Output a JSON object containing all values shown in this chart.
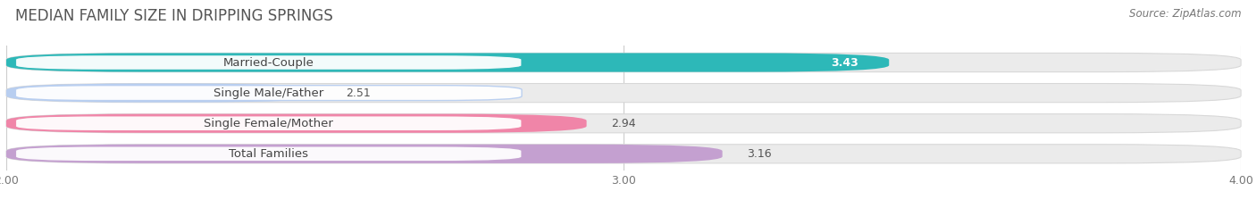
{
  "title": "MEDIAN FAMILY SIZE IN DRIPPING SPRINGS",
  "source": "Source: ZipAtlas.com",
  "categories": [
    "Married-Couple",
    "Single Male/Father",
    "Single Female/Mother",
    "Total Families"
  ],
  "values": [
    3.43,
    2.51,
    2.94,
    3.16
  ],
  "bar_colors": [
    "#2db8b8",
    "#b8cef0",
    "#f085a8",
    "#c4a0d0"
  ],
  "label_bg_colors": [
    "#e8f8f8",
    "#eaf0fc",
    "#fce8f0",
    "#f0e8f8"
  ],
  "label_border_colors": [
    "#2db8b8",
    "#b8cef0",
    "#f085a8",
    "#c4a0d0"
  ],
  "value_colors": [
    "#ffffff",
    "#555555",
    "#555555",
    "#555555"
  ],
  "xlim_min": 2.0,
  "xlim_max": 4.0,
  "xticks": [
    2.0,
    3.0,
    4.0
  ],
  "xtick_labels": [
    "2.00",
    "3.00",
    "4.00"
  ],
  "bg_color": "#ffffff",
  "bar_bg_color": "#ebebeb",
  "title_fontsize": 12,
  "label_fontsize": 9.5,
  "value_fontsize": 9,
  "source_fontsize": 8.5,
  "title_color": "#555555",
  "source_color": "#777777"
}
